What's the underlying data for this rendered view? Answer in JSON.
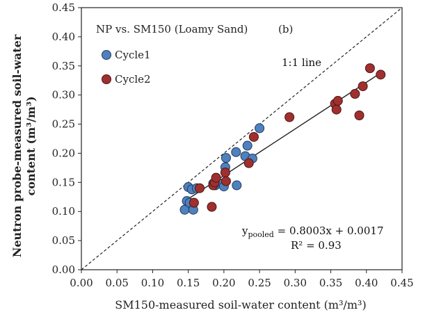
{
  "chart_data": {
    "type": "scatter",
    "title": "NP vs. SM150 (Loamy Sand)",
    "panel_label": "(b)",
    "xlabel": "SM150-measured soil-water content (m³/m³)",
    "ylabel_line1": "Neutron probe-measured soil-water",
    "ylabel_line2": "content  (m³/m³)",
    "xlim": [
      0.0,
      0.45
    ],
    "ylim": [
      0.0,
      0.45
    ],
    "xticks": [
      "0.00",
      "0.05",
      "0.10",
      "0.15",
      "0.20",
      "0.25",
      "0.30",
      "0.35",
      "0.40",
      "0.45"
    ],
    "yticks": [
      "0.00",
      "0.05",
      "0.10",
      "0.15",
      "0.20",
      "0.25",
      "0.30",
      "0.35",
      "0.40",
      "0.45"
    ],
    "grid": false,
    "legend_position": "top-left",
    "one_to_one_label": "1:1 line",
    "regression": {
      "slope": 0.8003,
      "intercept": 0.0017,
      "x_range": [
        0.145,
        0.42
      ],
      "equation_prefix": "y",
      "equation_subscript": "pooled",
      "equation_rest": " = 0.8003x + 0.0017",
      "r2_text": "R² = 0.93"
    },
    "series": [
      {
        "name": "Cycle1",
        "color": "#4f81bd",
        "points": [
          [
            0.145,
            0.103
          ],
          [
            0.148,
            0.118
          ],
          [
            0.152,
            0.115
          ],
          [
            0.15,
            0.142
          ],
          [
            0.155,
            0.138
          ],
          [
            0.157,
            0.103
          ],
          [
            0.162,
            0.14
          ],
          [
            0.185,
            0.148
          ],
          [
            0.188,
            0.145
          ],
          [
            0.198,
            0.148
          ],
          [
            0.2,
            0.143
          ],
          [
            0.202,
            0.176
          ],
          [
            0.203,
            0.192
          ],
          [
            0.217,
            0.202
          ],
          [
            0.218,
            0.145
          ],
          [
            0.23,
            0.195
          ],
          [
            0.233,
            0.213
          ],
          [
            0.24,
            0.191
          ],
          [
            0.25,
            0.243
          ]
        ]
      },
      {
        "name": "Cycle2",
        "color": "#a0302e",
        "points": [
          [
            0.158,
            0.115
          ],
          [
            0.166,
            0.14
          ],
          [
            0.183,
            0.108
          ],
          [
            0.185,
            0.145
          ],
          [
            0.187,
            0.15
          ],
          [
            0.189,
            0.158
          ],
          [
            0.202,
            0.167
          ],
          [
            0.203,
            0.152
          ],
          [
            0.235,
            0.183
          ],
          [
            0.242,
            0.228
          ],
          [
            0.292,
            0.262
          ],
          [
            0.356,
            0.285
          ],
          [
            0.358,
            0.275
          ],
          [
            0.36,
            0.29
          ],
          [
            0.384,
            0.302
          ],
          [
            0.39,
            0.265
          ],
          [
            0.395,
            0.315
          ],
          [
            0.405,
            0.346
          ],
          [
            0.42,
            0.335
          ]
        ]
      }
    ]
  }
}
